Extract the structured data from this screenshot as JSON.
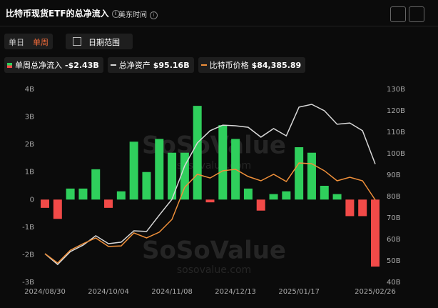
{
  "header": {
    "title": "比特币现货ETF的总净流入",
    "timezone": "美东时间",
    "tabs": [
      "单日",
      "单周"
    ],
    "active_tab": 1,
    "date_range": "日期范围"
  },
  "chart_data": {
    "type": "bar",
    "watermark": [
      "SoSoValue",
      "sosovalue.com"
    ],
    "categories": [
      "2024/08/30",
      null,
      null,
      null,
      null,
      "2024/10/04",
      null,
      null,
      null,
      null,
      "2024/11/08",
      null,
      null,
      null,
      null,
      "2024/12/13",
      null,
      null,
      null,
      null,
      "2025/01/17",
      null,
      null,
      null,
      null,
      null,
      "2025/02/26"
    ],
    "series": [
      {
        "name": "单周总净流入",
        "legend_value": "-$2.43B",
        "type": "bar",
        "color": "#2fcf5c",
        "negative_color": "#f24a48",
        "values": [
          -0.3,
          -0.7,
          0.4,
          0.4,
          1.1,
          -0.3,
          0.3,
          2.1,
          1.0,
          2.2,
          1.7,
          1.7,
          3.4,
          -0.1,
          2.7,
          2.2,
          0.4,
          -0.4,
          0.2,
          0.3,
          1.9,
          1.7,
          0.5,
          0.2,
          -0.6,
          -0.6,
          -2.43
        ]
      },
      {
        "name": "总净资产",
        "legend_value": "$95.16B",
        "type": "line",
        "axis": "y2",
        "color": "#d8d8d8",
        "values": [
          53.3,
          48.3,
          54.3,
          57.3,
          61.7,
          58,
          58.7,
          64,
          63.7,
          71.3,
          78.7,
          94.3,
          105,
          110.7,
          113.3,
          113,
          112.3,
          107.7,
          111.7,
          108.3,
          121.7,
          123,
          120,
          113.7,
          114.3,
          110.7,
          95.16
        ]
      },
      {
        "name": "比特币价格",
        "legend_value": "$84,385.89",
        "type": "line",
        "axis": "y3",
        "color": "#f0903a",
        "values": [
          55400,
          50400,
          57300,
          60800,
          63900,
          59300,
          59600,
          66600,
          63900,
          67000,
          73900,
          91200,
          98200,
          96200,
          100100,
          100900,
          97000,
          94700,
          98200,
          94300,
          104300,
          103900,
          100100,
          94700,
          96600,
          94700,
          84385.89
        ]
      }
    ],
    "ylim": [
      -3,
      4
    ],
    "yticks": [
      {
        "value": 4,
        "label": "4B"
      },
      {
        "value": 3,
        "label": "3B"
      },
      {
        "value": 2,
        "label": "2B"
      },
      {
        "value": 1,
        "label": "1B"
      },
      0,
      {
        "value": -1,
        "label": "-1B"
      },
      {
        "value": -2,
        "label": "-2B"
      },
      {
        "value": -3,
        "label": "-3B"
      }
    ],
    "y2lim": [
      40,
      130
    ],
    "y2ticks": [
      {
        "value": 130,
        "label": "130B"
      },
      {
        "value": 120,
        "label": "120B"
      },
      {
        "value": 110,
        "label": "110B"
      },
      {
        "value": 100,
        "label": "100B"
      },
      {
        "value": 90,
        "label": "90B"
      },
      {
        "value": 80,
        "label": "80B"
      },
      {
        "value": 70,
        "label": "70B"
      },
      {
        "value": 60,
        "label": "60B"
      },
      {
        "value": 50,
        "label": "50B"
      },
      {
        "value": 40,
        "label": "40B"
      }
    ],
    "y3lim": [
      40000,
      144000
    ],
    "grid": false
  }
}
